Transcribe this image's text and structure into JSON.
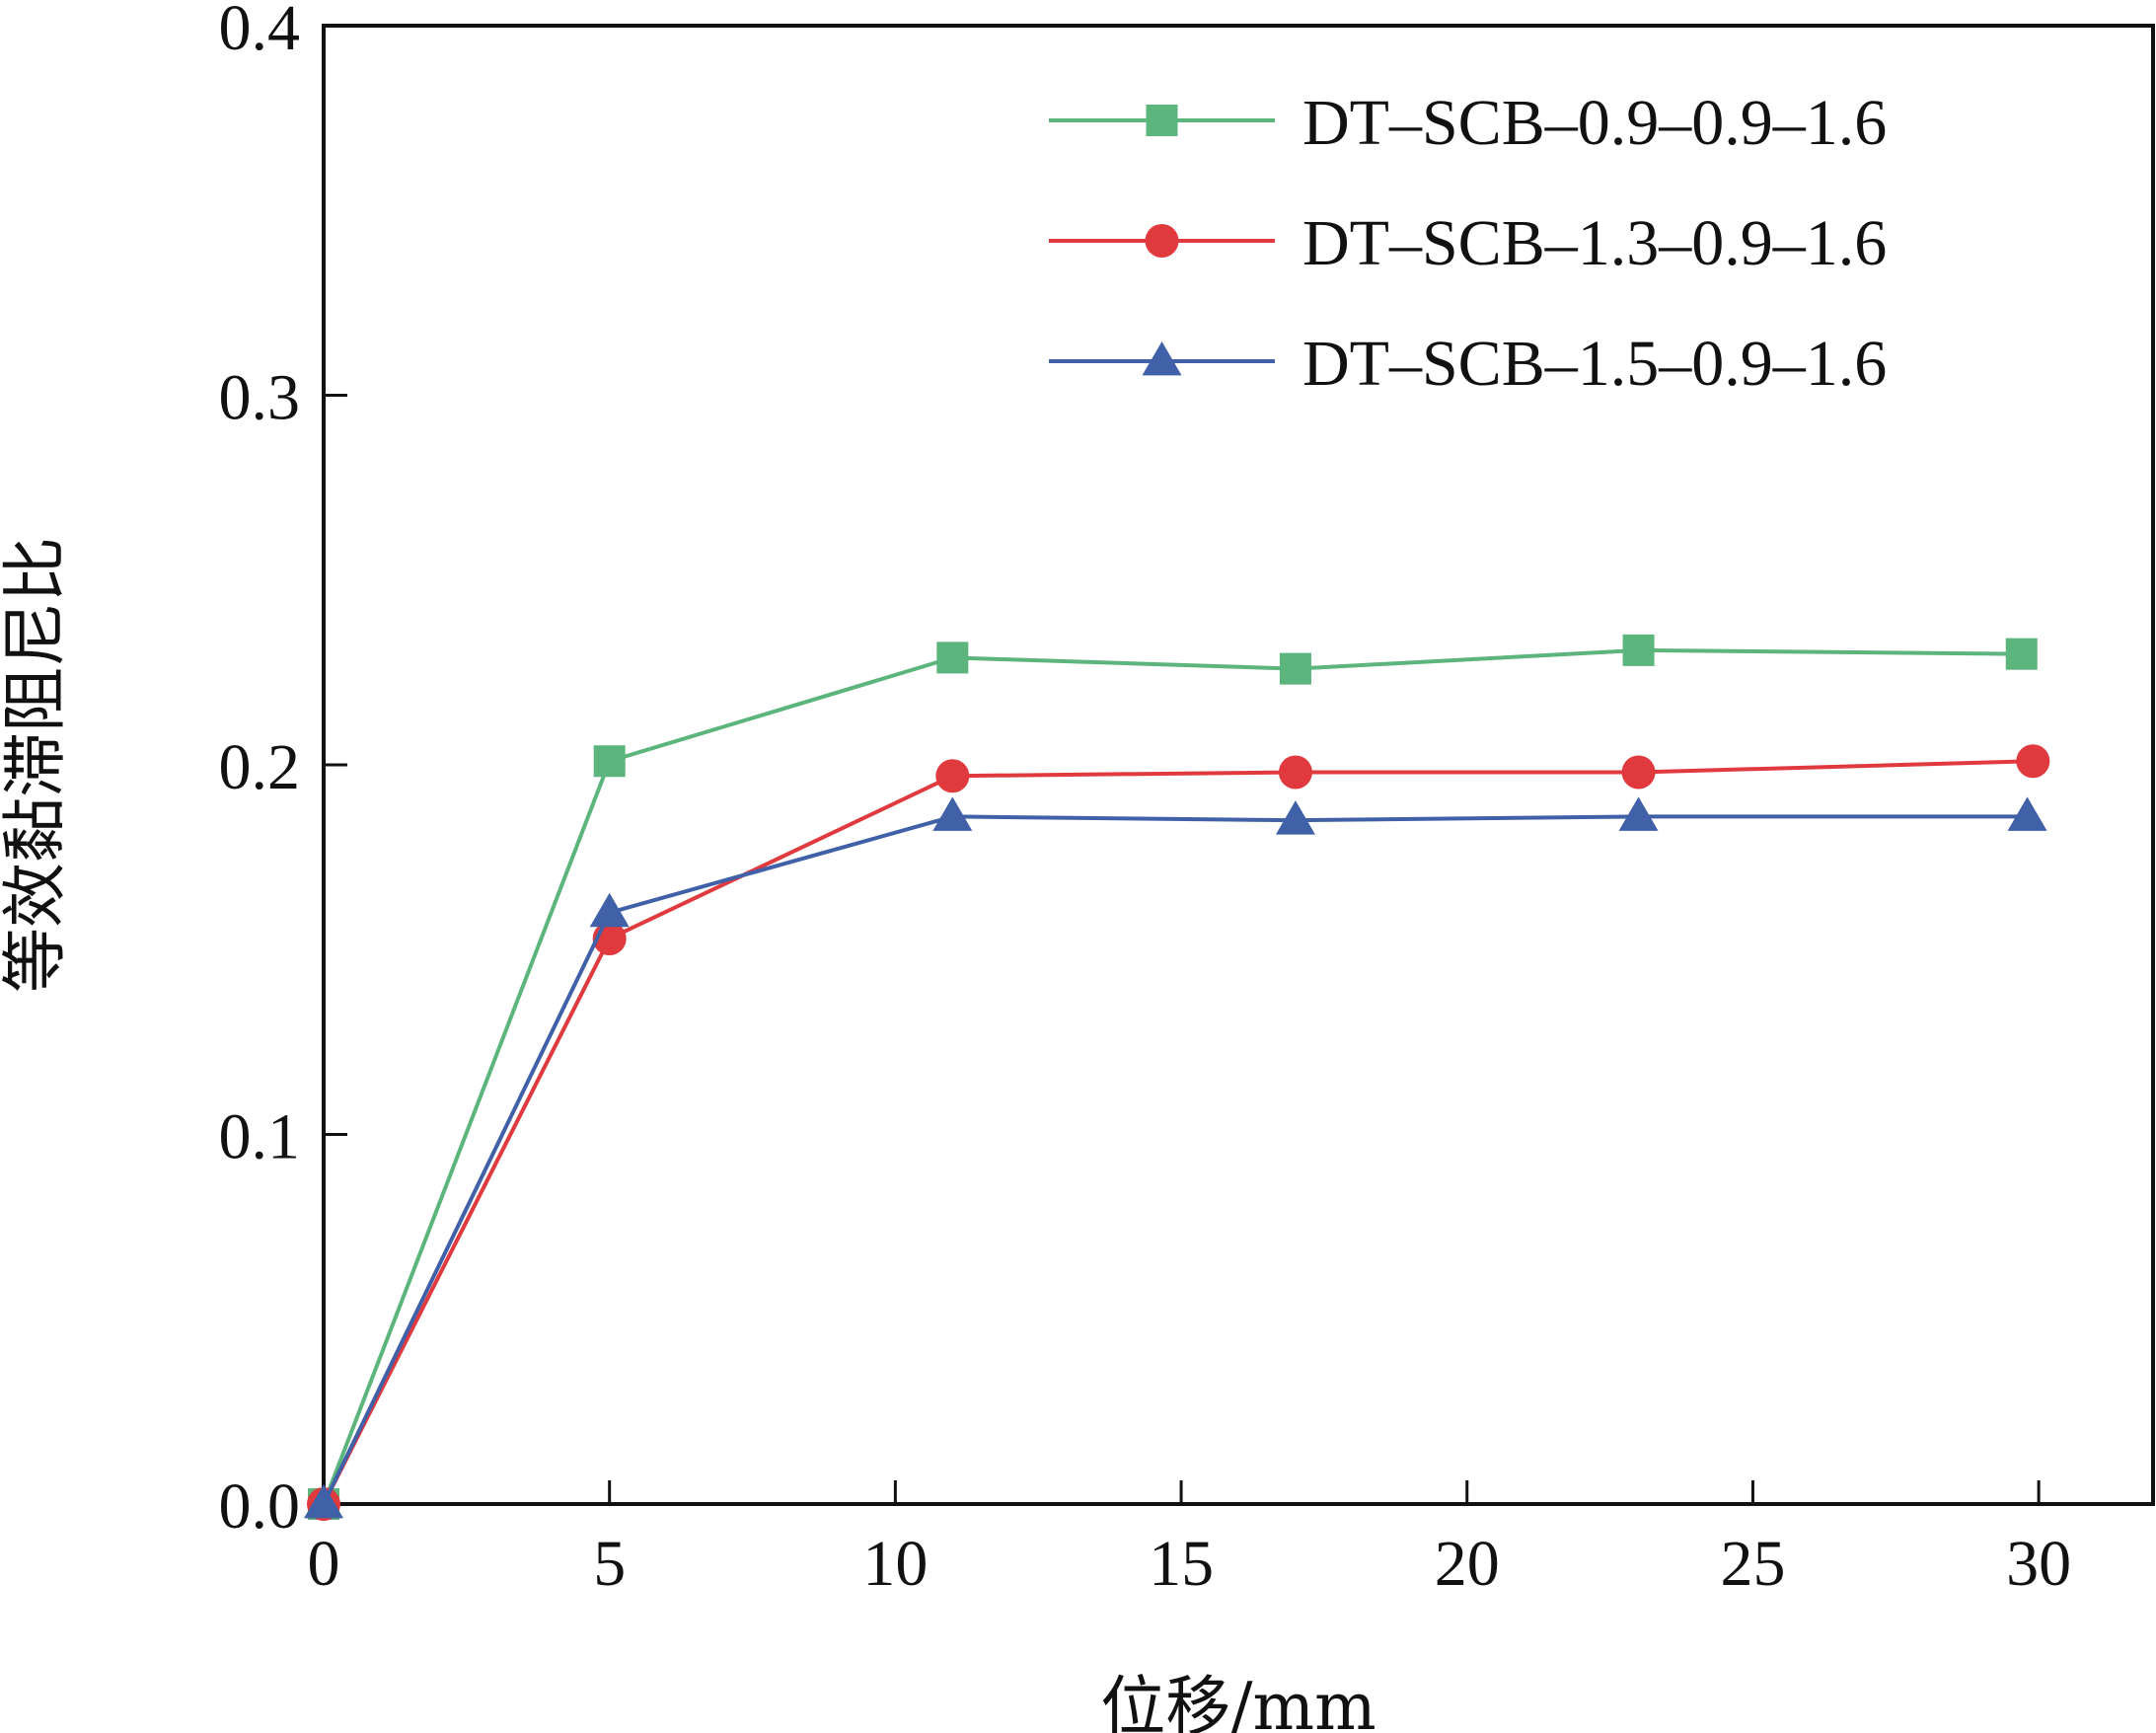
{
  "chart_data": {
    "type": "line",
    "xlabel": "位移/mm",
    "ylabel": "等效黏滞阻尼比",
    "xlim": [
      0,
      32
    ],
    "ylim": [
      0,
      0.4
    ],
    "x_ticks": [
      0,
      5,
      10,
      15,
      20,
      25,
      30
    ],
    "y_ticks": [
      0.0,
      0.1,
      0.2,
      0.3,
      0.4
    ],
    "x_tick_labels": [
      "0",
      "5",
      "10",
      "15",
      "20",
      "25",
      "30"
    ],
    "y_tick_labels": [
      "0.0",
      "0.1",
      "0.2",
      "0.3",
      "0.4"
    ],
    "grid": false,
    "legend_position": "top-right",
    "series": [
      {
        "name": "DT-SCB-0.9-0.9-1.6",
        "label": "DT–SCB–0.9–0.9–1.6",
        "color": "#5cb57c",
        "marker": "square",
        "x": [
          0,
          5,
          11,
          17,
          23,
          29.7
        ],
        "y": [
          0.0,
          0.201,
          0.229,
          0.226,
          0.231,
          0.23
        ]
      },
      {
        "name": "DT-SCB-1.3-0.9-1.6",
        "label": "DT–SCB–1.3–0.9–1.6",
        "color": "#e0393e",
        "marker": "circle",
        "x": [
          0,
          5,
          11,
          17,
          23,
          29.9
        ],
        "y": [
          0.0,
          0.153,
          0.197,
          0.198,
          0.198,
          0.201
        ]
      },
      {
        "name": "DT-SCB-1.5-0.9-1.6",
        "label": "DT–SCB–1.5–0.9–1.6",
        "color": "#4060a8",
        "marker": "triangle",
        "x": [
          0,
          5,
          11,
          17,
          23,
          29.8
        ],
        "y": [
          0.0,
          0.16,
          0.186,
          0.185,
          0.186,
          0.186
        ]
      }
    ]
  }
}
